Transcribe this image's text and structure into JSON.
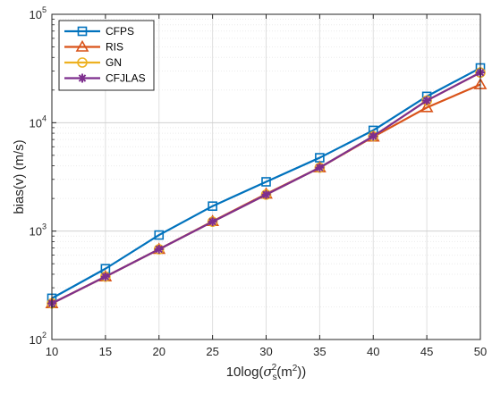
{
  "chart_data": {
    "type": "line",
    "xlabel": {
      "prefix": "10log(",
      "sym": "σ",
      "sub": "s",
      "sup": "2",
      "mid": "(m",
      "sup2": "2",
      "suffix": "))"
    },
    "ylabel": "bias(v) (m/s)",
    "x": [
      10,
      15,
      20,
      25,
      30,
      35,
      40,
      45,
      50
    ],
    "xlim": [
      10,
      50
    ],
    "ylim": [
      100,
      100000
    ],
    "yscale": "log",
    "grid": true,
    "legend": "top-left",
    "x_ticks": [
      "10",
      "15",
      "20",
      "25",
      "30",
      "35",
      "40",
      "45",
      "50"
    ],
    "y_ticks": [
      {
        "base": "10",
        "exp": "2",
        "value": 100
      },
      {
        "base": "10",
        "exp": "3",
        "value": 1000
      },
      {
        "base": "10",
        "exp": "4",
        "value": 10000
      },
      {
        "base": "10",
        "exp": "5",
        "value": 100000
      }
    ],
    "series": [
      {
        "name": "CFPS",
        "color": "#0072BD",
        "marker": "square",
        "values": [
          240,
          450,
          920,
          1700,
          2850,
          4750,
          8500,
          17500,
          32000
        ]
      },
      {
        "name": "RIS",
        "color": "#D95319",
        "marker": "triangle",
        "values": [
          215,
          380,
          680,
          1230,
          2200,
          3850,
          7400,
          13800,
          22500
        ]
      },
      {
        "name": "GN",
        "color": "#EDB120",
        "marker": "circle",
        "values": [
          215,
          380,
          680,
          1220,
          2170,
          3850,
          7500,
          16000,
          29000
        ]
      },
      {
        "name": "CFJLAS",
        "color": "#7E2F8E",
        "marker": "star",
        "values": [
          215,
          380,
          680,
          1220,
          2170,
          3850,
          7500,
          16000,
          29000
        ]
      }
    ]
  }
}
